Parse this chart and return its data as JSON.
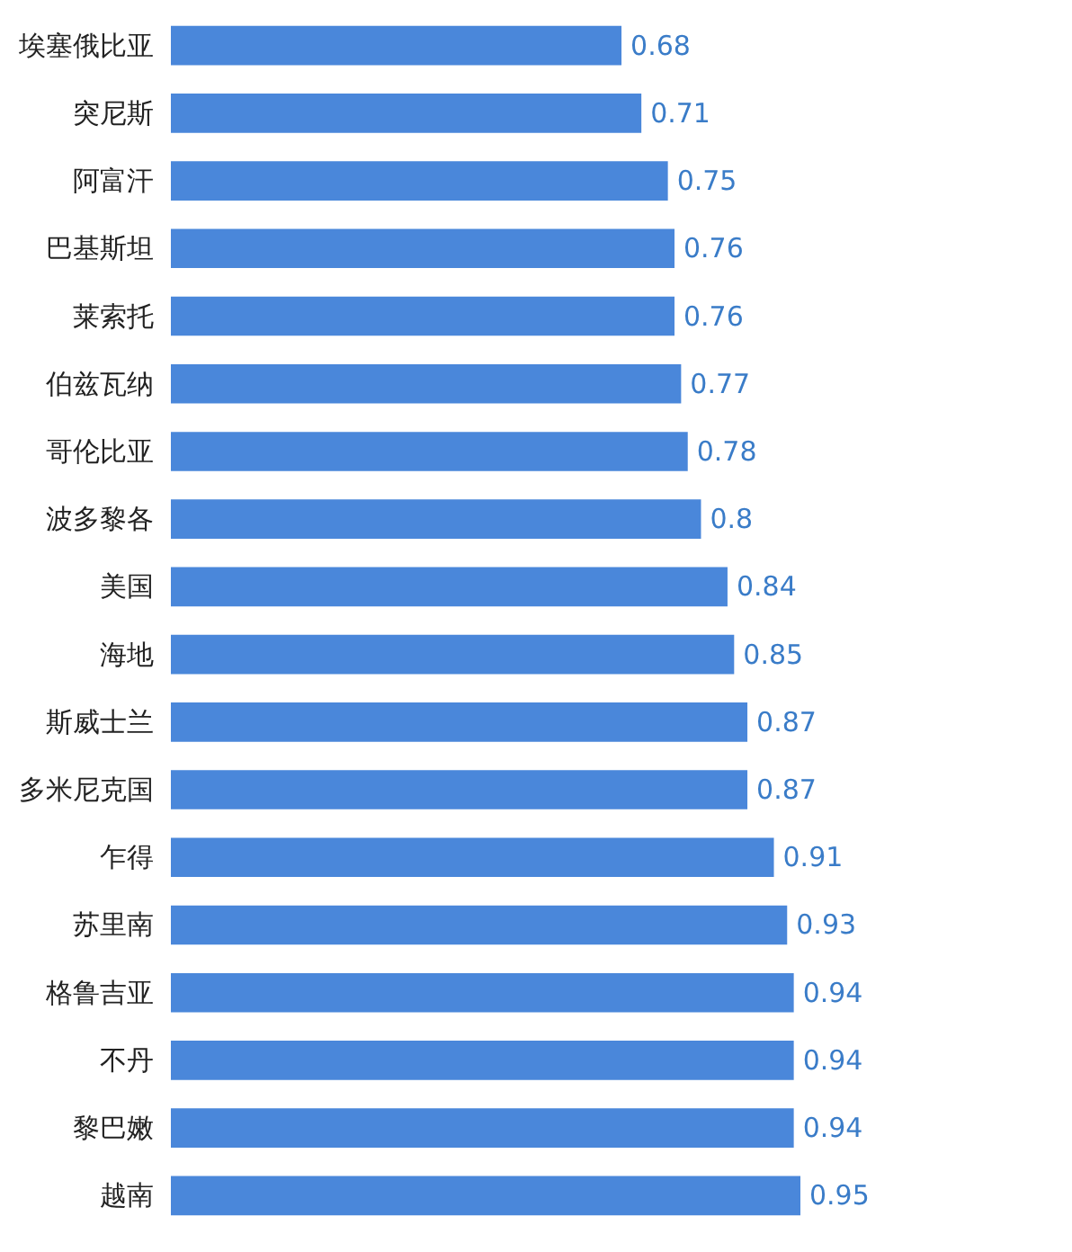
{
  "chart_data": {
    "type": "bar",
    "orientation": "horizontal",
    "categories": [
      "埃塞俄比亚",
      "突尼斯",
      "阿富汗",
      "巴基斯坦",
      "莱索托",
      "伯兹瓦纳",
      "哥伦比亚",
      "波多黎各",
      "美国",
      "海地",
      "斯威士兰",
      "多米尼克国",
      "乍得",
      "苏里南",
      "格鲁吉亚",
      "不丹",
      "黎巴嫩",
      "越南"
    ],
    "values": [
      0.68,
      0.71,
      0.75,
      0.76,
      0.76,
      0.77,
      0.78,
      0.8,
      0.84,
      0.85,
      0.87,
      0.87,
      0.91,
      0.93,
      0.94,
      0.94,
      0.94,
      0.95
    ],
    "color": "#4a87da",
    "data_labels": true
  }
}
